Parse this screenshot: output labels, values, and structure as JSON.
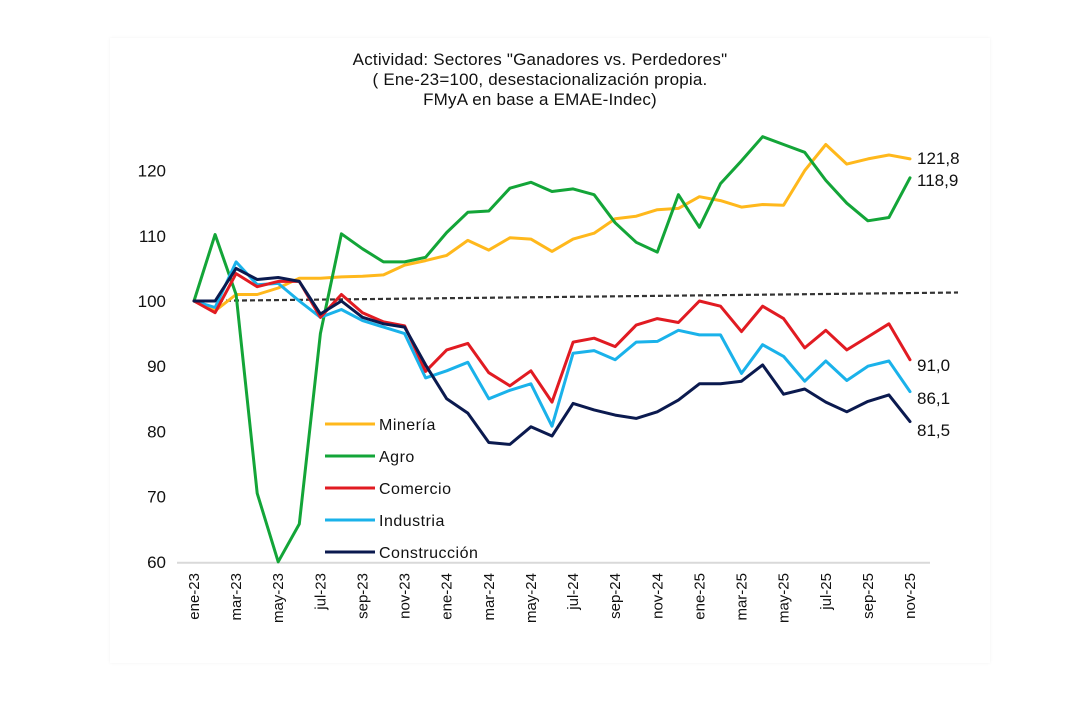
{
  "chart_data": {
    "type": "line",
    "title": "Actividad: Sectores \"Ganadores vs. Perdedores\"",
    "subtitle_lines": [
      "( Ene-23=100, desestacionalización propia.",
      "FMyA en base a EMAE-Indec)"
    ],
    "xlabel": "",
    "ylabel": "",
    "ylim": [
      60,
      125
    ],
    "yticks": [
      60,
      70,
      80,
      90,
      100,
      110,
      120
    ],
    "grid": false,
    "legend_position": "lower-left (inside)",
    "x": [
      "ene-23",
      "feb-23",
      "mar-23",
      "abr-23",
      "may-23",
      "jun-23",
      "jul-23",
      "ago-23",
      "sep-23",
      "oct-23",
      "nov-23",
      "dic-23",
      "ene-24",
      "feb-24",
      "mar-24",
      "abr-24",
      "may-24",
      "jun-24",
      "jul-24",
      "ago-24",
      "sep-24",
      "oct-24",
      "nov-24",
      "dic-24",
      "ene-25",
      "feb-25",
      "mar-25",
      "abr-25",
      "may-25",
      "jun-25",
      "jul-25",
      "ago-25",
      "sep-25",
      "oct-25",
      "nov-25"
    ],
    "xtick_labels": [
      "ene-23",
      "mar-23",
      "may-23",
      "jul-23",
      "sep-23",
      "nov-23",
      "ene-24",
      "mar-24",
      "may-24",
      "jul-24",
      "sep-24",
      "nov-24",
      "ene-25",
      "mar-25",
      "may-25",
      "jul-25",
      "sep-25",
      "nov-25"
    ],
    "series": [
      {
        "name": "Minería",
        "color": "#FFB81C",
        "end_label": "121,8",
        "values": [
          100,
          98.5,
          101,
          101,
          102,
          103.5,
          103.5,
          103.7,
          103.8,
          104,
          105.5,
          106.2,
          107,
          109.3,
          107.8,
          109.7,
          109.5,
          107.6,
          109.5,
          110.4,
          112.6,
          113,
          114,
          114.2,
          116,
          115.4,
          114.4,
          114.8,
          114.7,
          120,
          124,
          121,
          121.8,
          122.4,
          121.8
        ]
      },
      {
        "name": "Agro",
        "color": "#13A538",
        "end_label": "118,9",
        "values": [
          100,
          110.2,
          101,
          70.5,
          60,
          65.8,
          95,
          110.3,
          108,
          106,
          106,
          106.7,
          110.5,
          113.6,
          113.8,
          117.3,
          118.2,
          116.8,
          117.2,
          116.3,
          112,
          109,
          107.5,
          116.3,
          111.3,
          118,
          121.5,
          125.2,
          124,
          122.8,
          118.5,
          115,
          112.3,
          112.8,
          118.9
        ]
      },
      {
        "name": "Comercio",
        "color": "#E11B22",
        "end_label": "91,0",
        "values": [
          100,
          98.2,
          104.2,
          102.2,
          103,
          103,
          97.5,
          101,
          98.2,
          96.8,
          96.2,
          89.2,
          92.5,
          93.5,
          89,
          87,
          89.3,
          84.5,
          93.7,
          94.3,
          93,
          96.3,
          97.3,
          96.7,
          100,
          99.2,
          95.3,
          99.2,
          97.3,
          92.8,
          95.5,
          92.5,
          94.5,
          96.5,
          91.0
        ]
      },
      {
        "name": "Industria",
        "color": "#1AB2EA",
        "end_label": "86,1",
        "values": [
          100,
          99,
          106,
          102.5,
          102.7,
          100,
          97.5,
          98.7,
          97,
          96,
          95,
          88.2,
          89.3,
          90.6,
          85,
          86.3,
          87.3,
          80.8,
          92,
          92.4,
          91,
          93.7,
          93.8,
          95.5,
          94.8,
          94.8,
          88.9,
          93.3,
          91.5,
          87.7,
          90.8,
          87.8,
          90,
          90.8,
          86.1
        ]
      },
      {
        "name": "Construcción",
        "color": "#0B1A4F",
        "end_label": "81,5",
        "values": [
          100,
          100,
          105,
          103.3,
          103.6,
          103,
          98,
          100,
          97.5,
          96.5,
          96,
          90.2,
          85,
          82.8,
          78.3,
          78,
          80.7,
          79.3,
          84.3,
          83.3,
          82.5,
          82,
          83,
          84.8,
          87.3,
          87.3,
          87.7,
          90.2,
          85.7,
          86.5,
          84.5,
          83,
          84.6,
          85.6,
          81.5
        ]
      }
    ],
    "trend_line": {
      "style": "dashed",
      "color": "#333333",
      "start_value": 100,
      "end_value": 101.3
    }
  }
}
